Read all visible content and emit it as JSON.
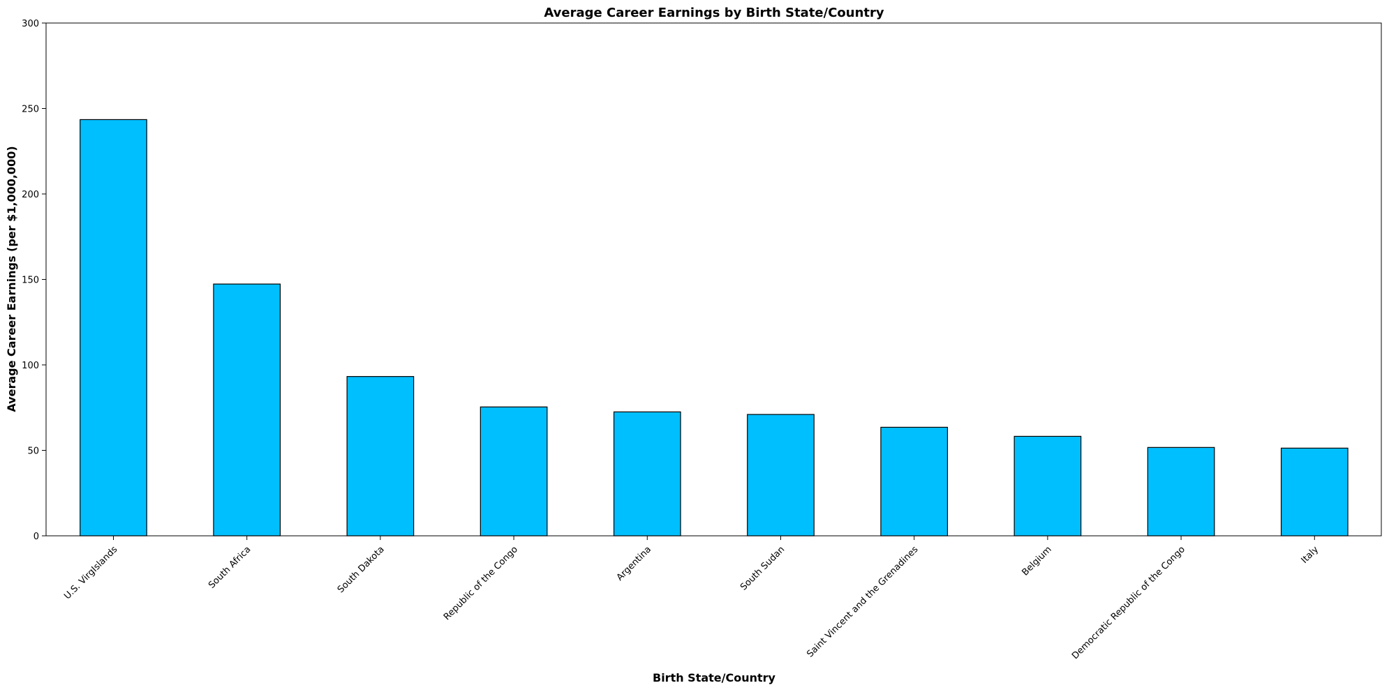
{
  "chart_data": {
    "type": "bar",
    "title": "Average Career Earnings by Birth State/Country",
    "xlabel": "Birth State/Country",
    "ylabel": "Average Career Earnings (per $1,000,000)",
    "categories": [
      "U.S. VirgIslands",
      "South Africa",
      "South Dakota",
      "Republic of the Congo",
      "Argentina",
      "South Sudan",
      "Saint Vincent and the Grenadines",
      "Belgium",
      "Democratic Republic of the Congo",
      "Italy"
    ],
    "values": [
      243.5,
      147.3,
      93.2,
      75.4,
      72.5,
      71.0,
      63.5,
      58.2,
      51.7,
      51.3
    ],
    "ylim": [
      0,
      300
    ],
    "yticks": [
      0,
      50,
      100,
      150,
      200,
      250,
      300
    ],
    "grid": false,
    "legend": null,
    "bar_color": "#00bfff",
    "edge_color": "#000000"
  }
}
